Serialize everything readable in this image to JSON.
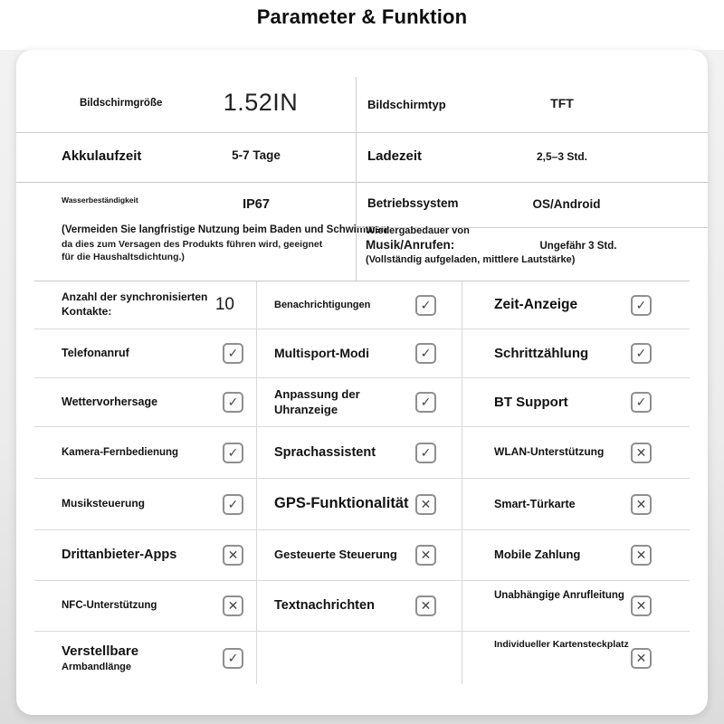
{
  "title": "Parameter & Funktion",
  "colors": {
    "text": "#161616",
    "box_border": "#8f8f8f",
    "mark": "#474747",
    "divider": "#cccccc",
    "card_bg": "#ffffff"
  },
  "specs": {
    "left": {
      "row1": {
        "label": "Bildschirmgröße",
        "value": "1.52IN"
      },
      "row2": {
        "label": "Akkulaufzeit",
        "value": "5-7 Tage"
      },
      "row3": {
        "label": "Wasserbeständigkeit",
        "value": "IP67"
      },
      "note1": "(Vermeiden Sie langfristige Nutzung beim Baden und Schwimmen",
      "note2": "da dies zum Versagen des Produkts führen wird, geeignet",
      "note3": "für die Haushaltsdichtung.)"
    },
    "right": {
      "row1": {
        "label": "Bildschirmtyp",
        "value": "TFT"
      },
      "row2": {
        "label": "Ladezeit",
        "value": "2,5–3 Std."
      },
      "row3": {
        "label": "Betriebssystem",
        "value": "OS/Android"
      },
      "row4": {
        "label1": "Wiedergabedauer von",
        "label2": "Musik/Anrufen:",
        "label3": "(Vollständig aufgeladen, mittlere Lautstärke)",
        "value": "Ungefähr 3 Std."
      }
    }
  },
  "features": {
    "rows": [
      {
        "c1": {
          "label": "Anzahl der synchronisierten",
          "label2": "Kontakte:",
          "value": "10"
        },
        "c2": {
          "label": "Benachrichtigungen",
          "mark": "✓"
        },
        "c3": {
          "label": "Zeit-Anzeige",
          "mark": "✓"
        }
      },
      {
        "c1": {
          "label": "Telefonanruf",
          "mark": "✓"
        },
        "c2": {
          "label": "Multisport-Modi",
          "mark": "✓"
        },
        "c3": {
          "label": "Schrittzählung",
          "mark": "✓"
        }
      },
      {
        "c1": {
          "label": "Wettervorhersage",
          "mark": "✓"
        },
        "c2": {
          "label": "Anpassung der",
          "label2": "Uhranzeige",
          "mark": "✓"
        },
        "c3": {
          "label": "BT Support",
          "mark": "✓"
        }
      },
      {
        "c1": {
          "label": "Kamera-Fernbedienung",
          "mark": "✓"
        },
        "c2": {
          "label": "Sprachassistent",
          "mark": "✓"
        },
        "c3": {
          "label": "WLAN-Unterstützung",
          "mark": "✕"
        }
      },
      {
        "c1": {
          "label": "Musiksteuerung",
          "mark": "✓"
        },
        "c2": {
          "label": "GPS-Funktionalität",
          "mark": "✕"
        },
        "c3": {
          "label": "Smart-Türkarte",
          "mark": "✕"
        }
      },
      {
        "c1": {
          "label": "Drittanbieter-Apps",
          "mark": "✕"
        },
        "c2": {
          "label": "Gesteuerte Steuerung",
          "mark": "✕"
        },
        "c3": {
          "label": "Mobile Zahlung",
          "mark": "✕"
        }
      },
      {
        "c1": {
          "label": "NFC-Unterstützung",
          "mark": "✕"
        },
        "c2": {
          "label": "Textnachrichten",
          "mark": "✕"
        },
        "c3": {
          "label": "Unabhängige Anrufleitung",
          "mark": "✕"
        }
      },
      {
        "c1": {
          "label": "Verstellbare",
          "label2": "Armbandlänge",
          "mark": "✓"
        },
        "c3": {
          "label": "Individueller Kartensteckplatz",
          "mark": "✕"
        }
      }
    ]
  }
}
